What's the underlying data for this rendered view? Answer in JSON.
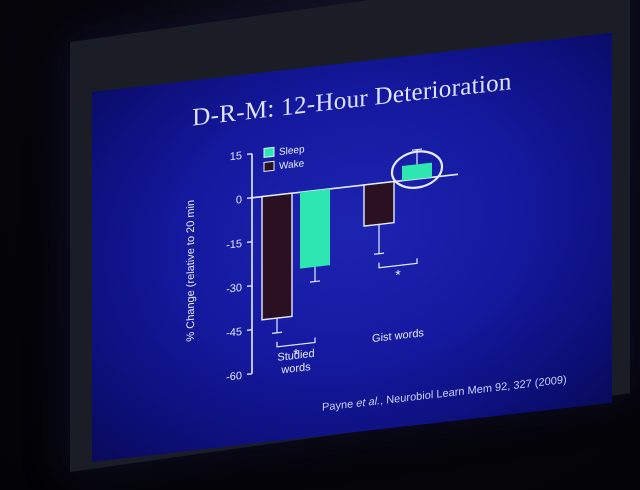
{
  "slide": {
    "title": "D-R-M: 12-Hour Deterioration",
    "citation_author": "Payne ",
    "citation_etal": "et al.",
    "citation_rest": ", Neurobiol Learn Mem 92, 327 (2009)"
  },
  "colors": {
    "sleep": "#2ee6b0",
    "wake": "#2a1020",
    "axis": "#e6ecff",
    "slide_bg": "#1519a0"
  },
  "chart_data": {
    "type": "bar",
    "title": "",
    "xlabel": "",
    "ylabel": "% Change (relative to 20 min",
    "ylim": [
      -60,
      15
    ],
    "yticks": [
      15,
      0,
      -15,
      -30,
      -45,
      -60
    ],
    "categories": [
      "Studied words",
      "Gist words"
    ],
    "category_lines": [
      [
        "Studied",
        "words"
      ],
      [
        "Gist words"
      ]
    ],
    "series": [
      {
        "name": "Wake",
        "values": [
          -42,
          -14
        ],
        "errors": [
          5,
          10
        ]
      },
      {
        "name": "Sleep",
        "values": [
          -26,
          5
        ],
        "errors": [
          5,
          5
        ]
      }
    ],
    "significance": [
      "*",
      "*"
    ],
    "legend_position": "top-left",
    "highlight": "circle around Gist words Sleep bar"
  }
}
